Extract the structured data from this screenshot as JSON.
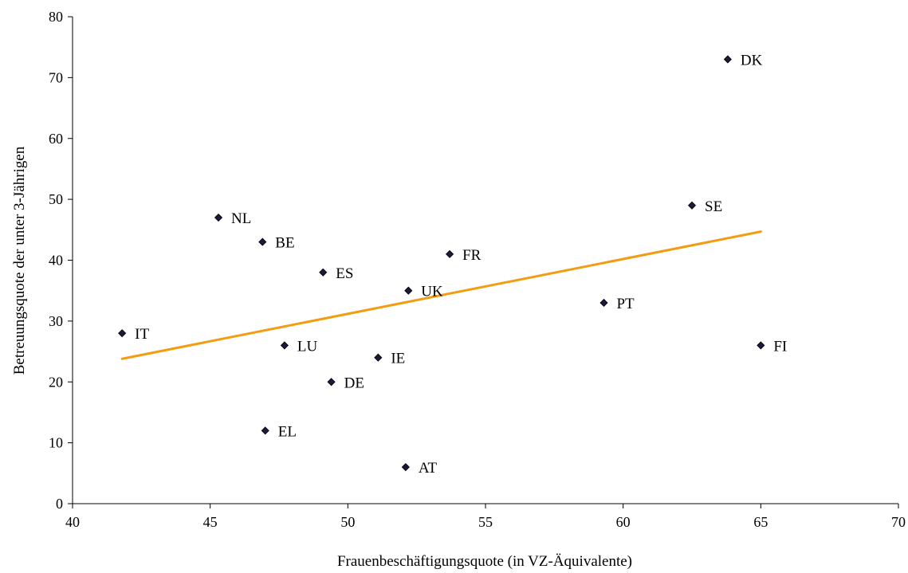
{
  "chart_data": {
    "type": "scatter",
    "title": "",
    "xlabel": "Frauenbeschäftigungsquote (in VZ-Äquivalente)",
    "ylabel": "Betreuungsquote der unter 3-Jährigen",
    "xlim": [
      40,
      70
    ],
    "ylim": [
      0,
      80
    ],
    "x_ticks": [
      40,
      45,
      50,
      55,
      60,
      65,
      70
    ],
    "y_ticks": [
      0,
      10,
      20,
      30,
      40,
      50,
      60,
      70,
      80
    ],
    "grid": false,
    "legend": "none",
    "series": [
      {
        "marker": "diamond",
        "color": "#1a1a3a",
        "points": [
          {
            "label": "DK",
            "x": 63.8,
            "y": 73
          },
          {
            "label": "SE",
            "x": 62.5,
            "y": 49
          },
          {
            "label": "NL",
            "x": 45.3,
            "y": 47
          },
          {
            "label": "BE",
            "x": 46.9,
            "y": 43
          },
          {
            "label": "FR",
            "x": 53.7,
            "y": 41
          },
          {
            "label": "ES",
            "x": 49.1,
            "y": 38
          },
          {
            "label": "UK",
            "x": 52.2,
            "y": 35
          },
          {
            "label": "PT",
            "x": 59.3,
            "y": 33
          },
          {
            "label": "IT",
            "x": 41.8,
            "y": 28
          },
          {
            "label": "LU",
            "x": 47.7,
            "y": 26
          },
          {
            "label": "FI",
            "x": 65.0,
            "y": 26
          },
          {
            "label": "IE",
            "x": 51.1,
            "y": 24
          },
          {
            "label": "DE",
            "x": 49.4,
            "y": 20
          },
          {
            "label": "EL",
            "x": 47.0,
            "y": 12
          },
          {
            "label": "AT",
            "x": 52.1,
            "y": 6
          }
        ]
      }
    ],
    "trendline": {
      "type": "linear",
      "color": "#f39c12",
      "x": [
        41.8,
        65.0
      ],
      "y": [
        23.8,
        44.7
      ]
    }
  }
}
